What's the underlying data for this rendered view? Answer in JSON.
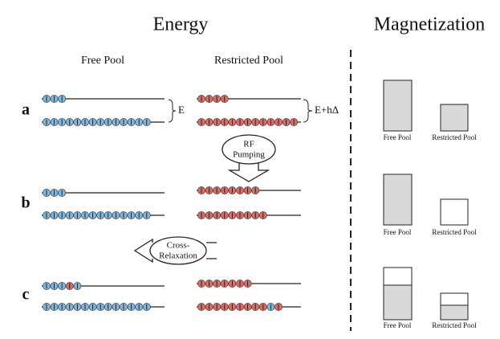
{
  "header": {
    "energy": "Energy",
    "magnetization": "Magnetization"
  },
  "columns": {
    "free": "Free Pool",
    "restricted": "Restricted Pool"
  },
  "rows": [
    {
      "label": "a"
    },
    {
      "label": "b"
    },
    {
      "label": "c"
    }
  ],
  "gaps": {
    "free": "E",
    "restricted": "E+hΔ"
  },
  "arrows": {
    "rf": [
      "RF",
      "Pumping"
    ],
    "cross": [
      "Cross-",
      "Relaxation"
    ]
  },
  "magnetization_labels": [
    [
      "Free Pool",
      "Restricted Pool"
    ],
    [
      "Free Pool",
      "Restricted Pool"
    ],
    [
      "Free Pool",
      "Restricted Pool"
    ]
  ]
}
